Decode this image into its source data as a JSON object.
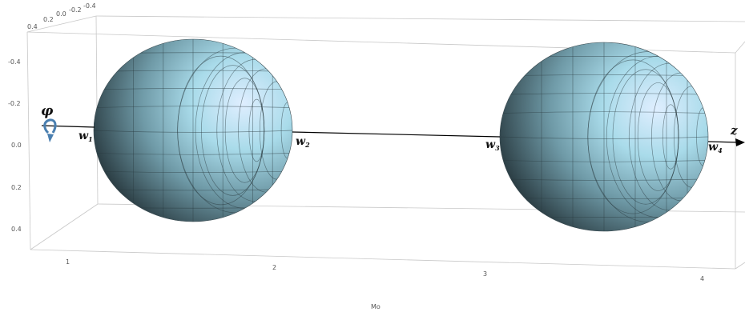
{
  "scene": {
    "axis_label_bottom": "Mo",
    "left_axis_ticks": [
      "-0.4",
      "-0.2",
      "0.0",
      "0.2",
      "0.4"
    ],
    "top_axis_ticks": [
      "0.4",
      "0.2",
      "0.0",
      "-0.2",
      "-0.4"
    ],
    "bottom_axis_ticks": [
      "1",
      "2",
      "3",
      "4"
    ],
    "rotation_label": "φ",
    "z_label": "z",
    "nodes": [
      {
        "base": "w",
        "sub": "1"
      },
      {
        "base": "w",
        "sub": "2"
      },
      {
        "base": "w",
        "sub": "3"
      },
      {
        "base": "w",
        "sub": "4"
      }
    ]
  },
  "colors": {
    "sphere_light": "#d4e6ff",
    "sphere_mid": "#8ec9de",
    "sphere_dark": "#1f2d32",
    "axis_line": "#000000",
    "rotation_arrow": "#4a7fb0",
    "box_line": "#c8c8c8"
  },
  "icons": {
    "rotation": "curved-rotation-arrow-icon",
    "z_arrow": "arrow-right-icon"
  }
}
